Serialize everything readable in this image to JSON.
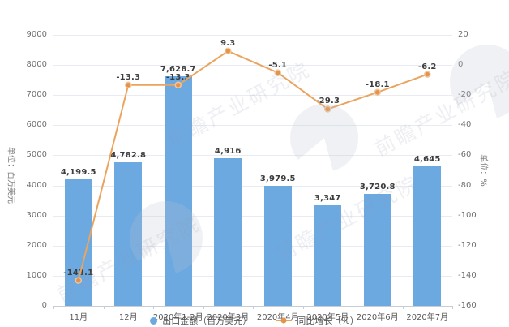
{
  "chart_data": {
    "type": "bar+line",
    "categories": [
      "11月",
      "12月",
      "2020年1-2月",
      "2020年3月",
      "2020年4月",
      "2020年5月",
      "2020年6月",
      "2020年7月"
    ],
    "series": [
      {
        "name": "出口金额（百万美元）",
        "type": "bar",
        "axis": "left",
        "color": "#6ca9e1",
        "values": [
          4199.5,
          4782.8,
          7628.7,
          4916,
          3979.5,
          3347,
          3720.8,
          4645
        ],
        "labels": [
          "4,199.5",
          "4,782.8",
          "7,628.7",
          "4,916",
          "3,979.5",
          "3,347",
          "3,720.8",
          "4,645"
        ]
      },
      {
        "name": "同比增长（%）",
        "type": "line",
        "axis": "right",
        "color": "#eba45e",
        "marker_color": "#e2944c",
        "values": [
          -143.1,
          -13.3,
          -13.3,
          9.3,
          -5.1,
          -29.3,
          -18.1,
          -6.2
        ],
        "labels": [
          "-143.1",
          "-13.3",
          "-13.3",
          "9.3",
          "-5.1",
          "-29.3",
          "-18.1",
          "-6.2"
        ]
      }
    ],
    "left_axis": {
      "title": "单位：百万美元",
      "min": 0,
      "max": 9000,
      "ticks": [
        0,
        1000,
        2000,
        3000,
        4000,
        5000,
        6000,
        7000,
        8000,
        9000
      ]
    },
    "right_axis": {
      "title": "单位：%",
      "min": -160,
      "max": 20,
      "ticks": [
        20,
        0,
        -20,
        -40,
        -60,
        -80,
        -100,
        -120,
        -140,
        -160
      ]
    },
    "legend_position": "bottom",
    "grid": true,
    "title": ""
  },
  "watermark": {
    "text": "前瞻产业研究院"
  }
}
